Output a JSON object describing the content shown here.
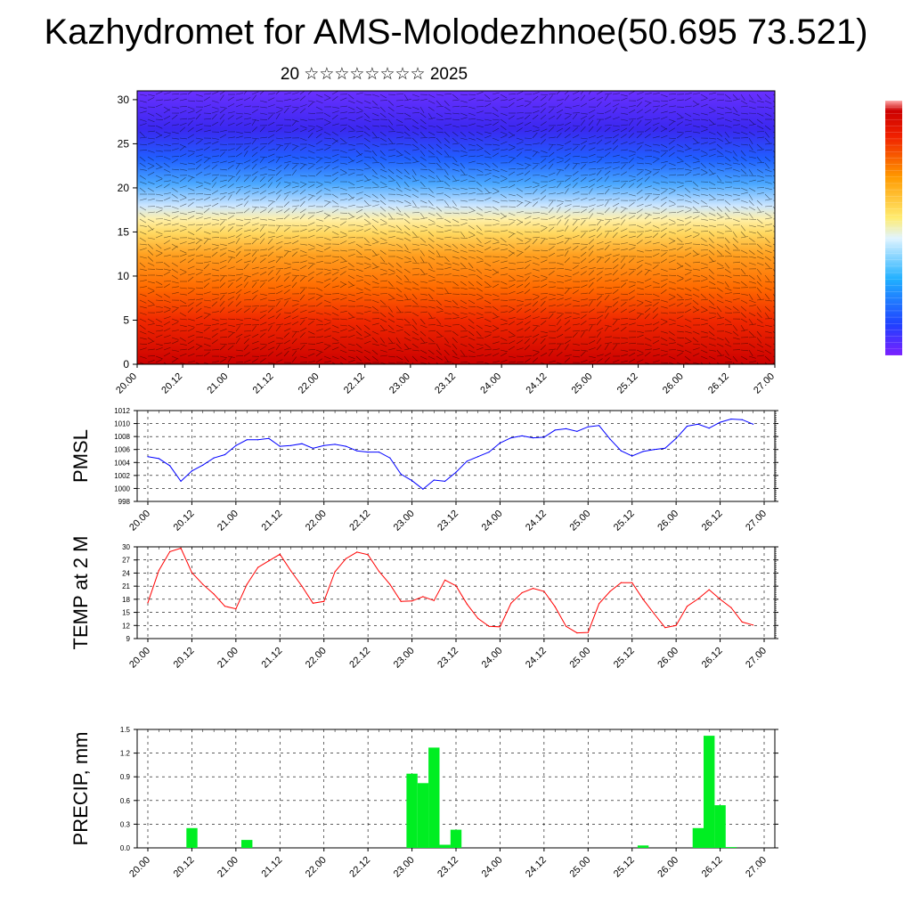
{
  "page": {
    "title": "Kazhydromet for AMS-Molodezhnoe(50.695 73.521)",
    "subtitle": "20 ☆☆☆☆☆☆☆☆ 2025"
  },
  "colors": {
    "pmsl_line": "#0000ff",
    "temp_line": "#ff0000",
    "precip_bar": "#00ee22",
    "grid": "#000000"
  },
  "chart_data": [
    {
      "id": "cross_section",
      "type": "heatmap",
      "y": [
        0,
        5,
        10,
        15,
        20,
        25,
        30
      ],
      "ylim": [
        0,
        31
      ],
      "x_ticks": [
        "20.00",
        "20.12",
        "21.00",
        "21.12",
        "22.00",
        "22.12",
        "23.00",
        "23.12",
        "24.00",
        "24.12",
        "25.00",
        "25.12",
        "26.00",
        "26.12",
        "27.00"
      ],
      "colorbar": [
        "#cc0000",
        "#e82000",
        "#ff5000",
        "#ff8c00",
        "#ffc040",
        "#ffec8a",
        "#c8e8ff",
        "#40b0ff",
        "#2060ff",
        "#4020e0",
        "#7a20ff"
      ],
      "overlay": "wind barbs / streamlines"
    },
    {
      "id": "pmsl",
      "type": "line",
      "ylabel": "PMSL",
      "ylim": [
        998,
        1012
      ],
      "yticks": [
        998,
        1000,
        1002,
        1004,
        1006,
        1008,
        1010,
        1012
      ],
      "x_ticks": [
        "20.00",
        "20.12",
        "21.00",
        "21.12",
        "22.00",
        "22.12",
        "23.00",
        "23.12",
        "24.00",
        "24.12",
        "25.00",
        "25.12",
        "26.00",
        "26.12",
        "27.00"
      ],
      "x": [
        0,
        3,
        6,
        9,
        12,
        15,
        18,
        21,
        24,
        27,
        30,
        33,
        36,
        39,
        42,
        45,
        48,
        51,
        54,
        57,
        60,
        63,
        66,
        69,
        72,
        75,
        78,
        81,
        84,
        87,
        90,
        93,
        96,
        99,
        102,
        105,
        108,
        111,
        114,
        117,
        120,
        123,
        126,
        129,
        132,
        135,
        138,
        141,
        144,
        147,
        150,
        153,
        156,
        159,
        162,
        165
      ],
      "values": [
        1004.9,
        1004.6,
        1003.5,
        1001.1,
        1002.7,
        1003.6,
        1004.7,
        1005.2,
        1006.6,
        1007.5,
        1007.5,
        1007.7,
        1006.5,
        1006.6,
        1006.9,
        1006.2,
        1006.6,
        1006.8,
        1006.5,
        1005.8,
        1005.6,
        1005.6,
        1004.7,
        1002.2,
        1001.2,
        999.9,
        1001.3,
        1001.1,
        1002.5,
        1004.2,
        1004.9,
        1005.6,
        1007.0,
        1007.8,
        1008.1,
        1007.8,
        1007.9,
        1009.0,
        1009.2,
        1008.8,
        1009.5,
        1009.7,
        1007.6,
        1005.8,
        1005.0,
        1005.7,
        1006.0,
        1006.2,
        1007.7,
        1009.6,
        1009.9,
        1009.3,
        1010.2,
        1010.7,
        1010.6,
        1009.9
      ]
    },
    {
      "id": "temp",
      "type": "line",
      "ylabel": "TEMP at 2 M",
      "ylim": [
        9,
        30
      ],
      "yticks": [
        9,
        12,
        15,
        18,
        21,
        24,
        27,
        30
      ],
      "x_ticks": [
        "20.00",
        "20.12",
        "21.00",
        "21.12",
        "22.00",
        "22.12",
        "23.00",
        "23.12",
        "24.00",
        "24.12",
        "25.00",
        "25.12",
        "26.00",
        "26.12",
        "27.00"
      ],
      "x": [
        0,
        3,
        6,
        9,
        12,
        15,
        18,
        21,
        24,
        27,
        30,
        33,
        36,
        39,
        42,
        45,
        48,
        51,
        54,
        57,
        60,
        63,
        66,
        69,
        72,
        75,
        78,
        81,
        84,
        87,
        90,
        93,
        96,
        99,
        102,
        105,
        108,
        111,
        114,
        117,
        120,
        123,
        126,
        129,
        132,
        135,
        138,
        141,
        144,
        147,
        150,
        153,
        156,
        159,
        162,
        165
      ],
      "values": [
        17.2,
        24.6,
        28.9,
        29.7,
        24.1,
        21.4,
        19.2,
        16.4,
        15.8,
        21.4,
        25.3,
        26.8,
        28.3,
        24.5,
        21.0,
        17.1,
        17.5,
        24.3,
        27.3,
        28.8,
        28.2,
        24.4,
        21.4,
        17.5,
        17.6,
        18.6,
        17.7,
        22.4,
        21.1,
        16.9,
        13.6,
        11.8,
        11.7,
        17.1,
        19.5,
        20.5,
        19.8,
        16.3,
        11.8,
        10.3,
        10.4,
        17.0,
        19.8,
        21.8,
        21.8,
        18.0,
        14.7,
        11.5,
        12.0,
        16.4,
        18.1,
        20.2,
        18.0,
        16.1,
        12.8,
        12.1
      ]
    },
    {
      "id": "precip",
      "type": "bar",
      "ylabel": "PRECIP, mm",
      "ylim": [
        0.0,
        1.5
      ],
      "yticks": [
        "0.0",
        "0.3",
        "0.6",
        "0.9",
        "1.2",
        "1.5"
      ],
      "x_ticks": [
        "20.00",
        "20.12",
        "21.00",
        "21.12",
        "22.00",
        "22.12",
        "23.00",
        "23.12",
        "24.00",
        "24.12",
        "25.00",
        "25.12",
        "26.00",
        "26.12",
        "27.00"
      ],
      "x": [
        12,
        27,
        72,
        75,
        78,
        81,
        84,
        135,
        150,
        153,
        156,
        159
      ],
      "values": [
        0.25,
        0.1,
        0.94,
        0.82,
        1.27,
        0.04,
        0.23,
        0.03,
        0.25,
        1.42,
        0.54,
        0.01
      ]
    }
  ]
}
